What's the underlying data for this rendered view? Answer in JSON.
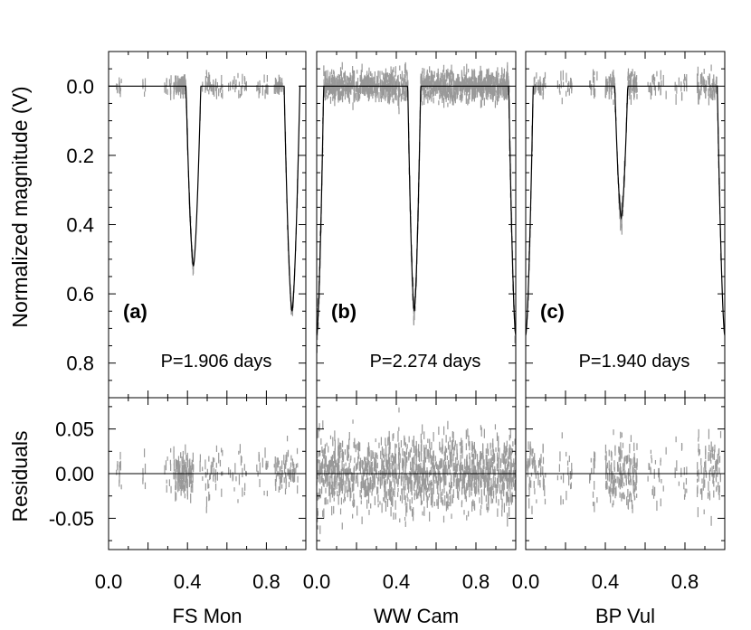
{
  "chart_data": {
    "type": "line",
    "title": "",
    "ylabel_top": "Normalized magnitude (V)",
    "ylabel_bottom": "Residuals",
    "ylim_top": [
      -0.1,
      0.9
    ],
    "ylim_bottom": [
      -0.085,
      0.085
    ],
    "yticks_top": [
      0.0,
      0.2,
      0.4,
      0.6,
      0.8
    ],
    "yticks_top_labels": [
      "0.0",
      "0.2",
      "0.4",
      "0.6",
      "0.8"
    ],
    "yticks_bottom": [
      0.05,
      0.0,
      -0.05
    ],
    "yticks_bottom_labels": [
      "0.05",
      "0.00",
      "-0.05"
    ],
    "xlim": [
      0.0,
      1.0
    ],
    "xticks": [
      0.0,
      0.4,
      0.8
    ],
    "xticks_labels": [
      "0.0",
      "0.4",
      "0.8"
    ],
    "data_color": "#999999",
    "model_color": "#000000",
    "panels": [
      {
        "id": "a",
        "tag": "(a)",
        "star": "FS Mon",
        "period_label": "P=1.906 days",
        "primary_eclipse": {
          "phase": 0.43,
          "depth": 0.52,
          "width": 0.075
        },
        "secondary_eclipse": {
          "phase": 0.93,
          "depth": 0.65,
          "width": 0.08
        },
        "residual_scatter": 0.012
      },
      {
        "id": "b",
        "tag": "(b)",
        "star": "WW Cam",
        "period_label": "P=2.274 days",
        "primary_eclipse": {
          "phase": 0.49,
          "depth": 0.65,
          "width": 0.065
        },
        "secondary_eclipse": {
          "phase": 1.0,
          "depth": 0.72,
          "width": 0.07
        },
        "residual_scatter": 0.02
      },
      {
        "id": "c",
        "tag": "(c)",
        "star": "BP Vul",
        "period_label": "P=1.940 days",
        "primary_eclipse": {
          "phase": 0.48,
          "depth": 0.38,
          "width": 0.065
        },
        "secondary_eclipse": {
          "phase": 1.0,
          "depth": 0.72,
          "width": 0.075
        },
        "residual_scatter": 0.018
      }
    ]
  }
}
